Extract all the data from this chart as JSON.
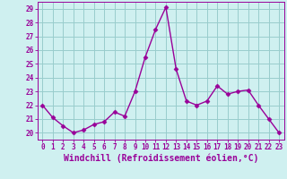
{
  "x": [
    0,
    1,
    2,
    3,
    4,
    5,
    6,
    7,
    8,
    9,
    10,
    11,
    12,
    13,
    14,
    15,
    16,
    17,
    18,
    19,
    20,
    21,
    22,
    23
  ],
  "y": [
    22.0,
    21.1,
    20.5,
    20.0,
    20.2,
    20.6,
    20.8,
    21.5,
    21.2,
    23.0,
    25.5,
    27.5,
    29.1,
    24.6,
    22.3,
    22.0,
    22.3,
    23.4,
    22.8,
    23.0,
    23.1,
    22.0,
    21.0,
    20.0
  ],
  "line_color": "#990099",
  "marker": "D",
  "markersize": 2.5,
  "linewidth": 1.0,
  "bg_color": "#cff0f0",
  "grid_color": "#99cccc",
  "xlabel": "Windchill (Refroidissement éolien,°C)",
  "xlim": [
    -0.5,
    23.5
  ],
  "ylim": [
    19.5,
    29.5
  ],
  "yticks": [
    20,
    21,
    22,
    23,
    24,
    25,
    26,
    27,
    28,
    29
  ],
  "xticks": [
    0,
    1,
    2,
    3,
    4,
    5,
    6,
    7,
    8,
    9,
    10,
    11,
    12,
    13,
    14,
    15,
    16,
    17,
    18,
    19,
    20,
    21,
    22,
    23
  ],
  "tick_color": "#990099",
  "label_color": "#990099",
  "tick_fontsize": 5.5,
  "xlabel_fontsize": 7.0
}
